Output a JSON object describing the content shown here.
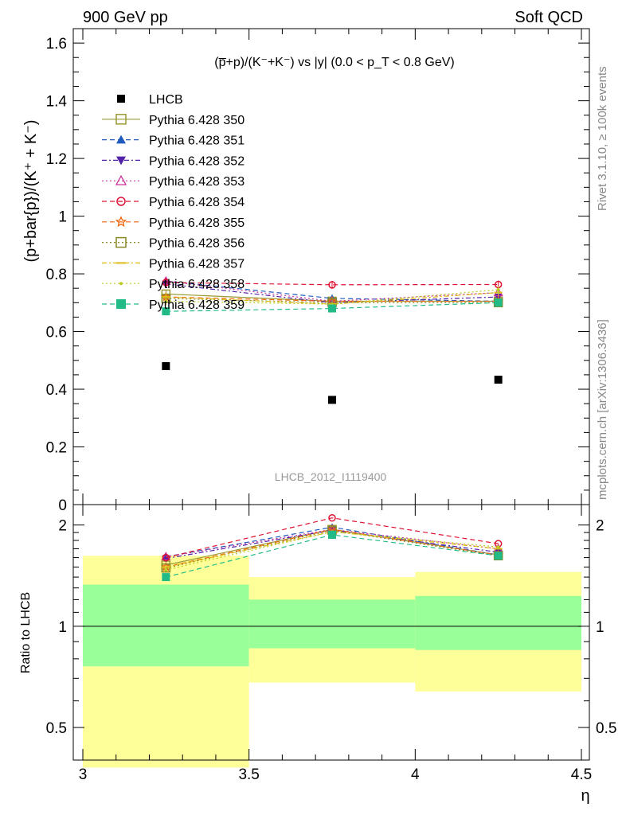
{
  "header": {
    "left": "900 GeV pp",
    "right": "Soft QCD"
  },
  "side_text": {
    "rivet": "Rivet 3.1.10, ≥ 100k events",
    "mcplots": "mcplots.cern.ch [arXiv:1306.3436]"
  },
  "watermark": "LHCB_2012_I1119400",
  "main_title": "(p̅+p)/(K⁻+K⁻) vs |y| (0.0 < p_T < 0.8 GeV)",
  "colors": {
    "band_inner": "#99ff99",
    "band_outer": "#ffff99",
    "ref": "#000000"
  },
  "chart_data": [
    {
      "type": "scatter",
      "title": "(p̅+p)/(K⁻+K⁻) vs |y| (0.0 < p_T < 0.8 GeV)",
      "xlabel": "η",
      "ylabel": "(p+bar{p})/(K⁺ + K⁻)",
      "xlim": [
        3.0,
        4.5
      ],
      "ylim": [
        0,
        1.65
      ],
      "x_ticks": [
        "3",
        "3.5",
        "4",
        "4.5"
      ],
      "y_ticks": [
        "0",
        "0.2",
        "0.4",
        "0.6",
        "0.8",
        "1",
        "1.2",
        "1.4",
        "1.6"
      ],
      "legend_position": "top-left",
      "x": [
        3.25,
        3.75,
        4.25
      ],
      "x_bins": [
        [
          3.0,
          3.5
        ],
        [
          3.5,
          4.0
        ],
        [
          4.0,
          4.5
        ]
      ],
      "reference": {
        "name": "LHCB",
        "values": [
          0.48,
          0.363,
          0.433
        ],
        "color": "#000000",
        "marker": "square-filled"
      },
      "series": [
        {
          "name": "Pythia 6.428 350",
          "values": [
            0.73,
            0.705,
            0.705
          ],
          "color": "#999933",
          "marker": "square-open",
          "dash": "solid"
        },
        {
          "name": "Pythia 6.428 351",
          "values": [
            0.775,
            0.715,
            0.705
          ],
          "color": "#1f5bbf",
          "marker": "triangle-up",
          "dash": "dashed"
        },
        {
          "name": "Pythia 6.428 352",
          "values": [
            0.765,
            0.7,
            0.72
          ],
          "color": "#5522aa",
          "marker": "triangle-down",
          "dash": "dashdot"
        },
        {
          "name": "Pythia 6.428 353",
          "values": [
            0.775,
            0.705,
            0.735
          ],
          "color": "#cc3399",
          "marker": "triangle-open",
          "dash": "dotted"
        },
        {
          "name": "Pythia 6.428 354",
          "values": [
            0.77,
            0.762,
            0.763
          ],
          "color": "#dd1133",
          "marker": "circle-open",
          "dash": "dashed"
        },
        {
          "name": "Pythia 6.428 355",
          "values": [
            0.72,
            0.705,
            0.705
          ],
          "color": "#ee6611",
          "marker": "star-open",
          "dash": "dashed"
        },
        {
          "name": "Pythia 6.428 356",
          "values": [
            0.715,
            0.7,
            0.7
          ],
          "color": "#888822",
          "marker": "square-open",
          "dash": "dotted"
        },
        {
          "name": "Pythia 6.428 357",
          "values": [
            0.72,
            0.695,
            0.735
          ],
          "color": "#ddbb11",
          "marker": "dash-marker",
          "dash": "dashdot"
        },
        {
          "name": "Pythia 6.428 358",
          "values": [
            0.705,
            0.695,
            0.745
          ],
          "color": "#bbcc22",
          "marker": "dot",
          "dash": "dotted"
        },
        {
          "name": "Pythia 6.428 359",
          "values": [
            0.67,
            0.68,
            0.7
          ],
          "color": "#22bb88",
          "marker": "square-filled",
          "dash": "dashed"
        }
      ]
    },
    {
      "type": "line",
      "ylabel": "Ratio to LHCB",
      "xlabel": "η",
      "xlim": [
        3.0,
        4.5
      ],
      "ylim": [
        0.4,
        2.3
      ],
      "x_ticks": [
        "3",
        "3.5",
        "4",
        "4.5"
      ],
      "y_ticks": [
        "0.5",
        "1",
        "2"
      ],
      "y_scale": "log",
      "x": [
        3.25,
        3.75,
        4.25
      ],
      "bands": [
        {
          "x": [
            3.0,
            3.5
          ],
          "inner": [
            0.76,
            1.33
          ],
          "outer": [
            0.38,
            1.62
          ]
        },
        {
          "x": [
            3.5,
            4.0
          ],
          "inner": [
            0.86,
            1.2
          ],
          "outer": [
            0.68,
            1.4
          ]
        },
        {
          "x": [
            4.0,
            4.5
          ],
          "inner": [
            0.85,
            1.23
          ],
          "outer": [
            0.64,
            1.45
          ]
        }
      ],
      "series": [
        {
          "name": "Pythia 6.428 350",
          "values": [
            1.52,
            1.94,
            1.63
          ]
        },
        {
          "name": "Pythia 6.428 351",
          "values": [
            1.61,
            1.97,
            1.63
          ]
        },
        {
          "name": "Pythia 6.428 352",
          "values": [
            1.59,
            1.93,
            1.66
          ]
        },
        {
          "name": "Pythia 6.428 353",
          "values": [
            1.61,
            1.94,
            1.7
          ]
        },
        {
          "name": "Pythia 6.428 354",
          "values": [
            1.6,
            2.1,
            1.76
          ]
        },
        {
          "name": "Pythia 6.428 355",
          "values": [
            1.5,
            1.94,
            1.63
          ]
        },
        {
          "name": "Pythia 6.428 356",
          "values": [
            1.49,
            1.93,
            1.62
          ]
        },
        {
          "name": "Pythia 6.428 357",
          "values": [
            1.5,
            1.91,
            1.7
          ]
        },
        {
          "name": "Pythia 6.428 358",
          "values": [
            1.47,
            1.91,
            1.72
          ]
        },
        {
          "name": "Pythia 6.428 359",
          "values": [
            1.4,
            1.87,
            1.62
          ]
        }
      ]
    }
  ]
}
